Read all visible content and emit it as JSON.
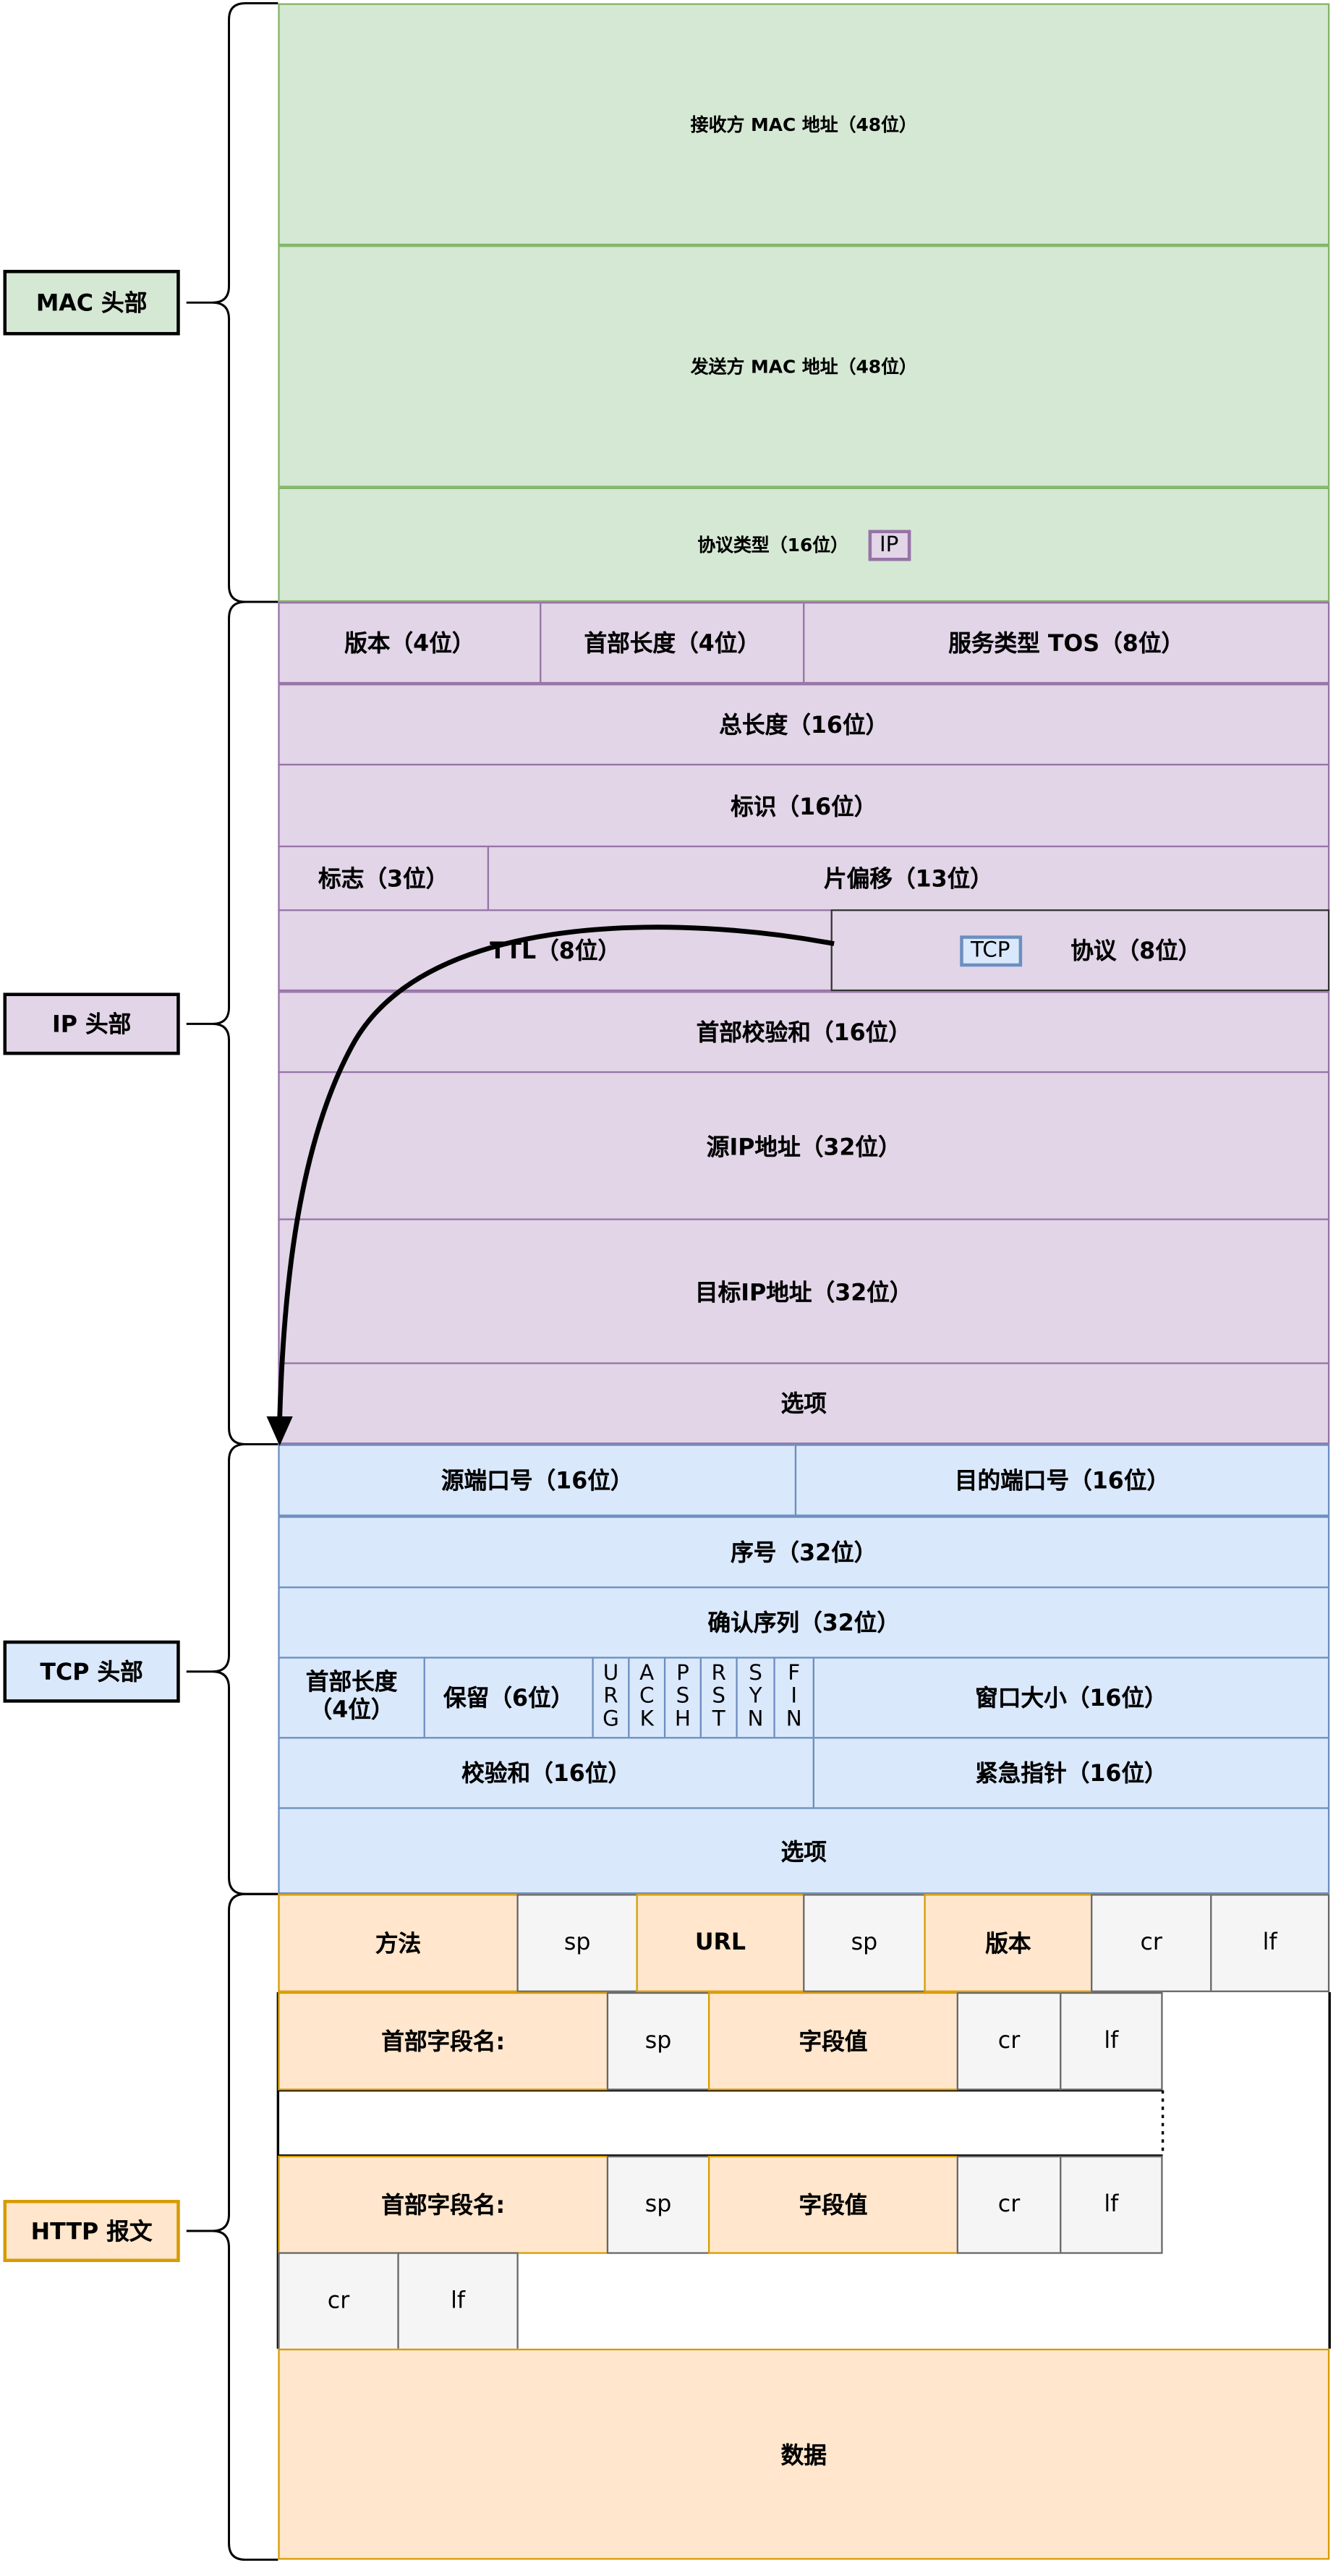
{
  "labels": {
    "mac": "MAC 头部",
    "ip": "IP 头部",
    "tcp": "TCP 头部",
    "http": "HTTP 报文"
  },
  "mac": {
    "dst": "接收方 MAC 地址（48位）",
    "src": "发送方 MAC 地址（48位）",
    "type": "协议类型（16位）",
    "type_tag": "IP"
  },
  "ip": {
    "version": "版本（4位）",
    "ihl": "首部长度（4位）",
    "tos": "服务类型 TOS（8位）",
    "total_len": "总长度（16位）",
    "id": "标识（16位）",
    "flags": "标志（3位）",
    "frag": "片偏移（13位）",
    "ttl": "TTL（8位）",
    "proto_tag": "TCP",
    "proto": "协议（8位）",
    "checksum": "首部校验和（16位）",
    "src": "源IP地址（32位）",
    "dst": "目标IP地址（32位）",
    "options": "选项"
  },
  "tcp": {
    "src_port": "源端口号（16位）",
    "dst_port": "目的端口号（16位）",
    "seq": "序号（32位）",
    "ack": "确认序列（32位）",
    "hlen": "首部长度（4位）",
    "reserved": "保留（6位）",
    "flags": [
      "URG",
      "ACK",
      "PSH",
      "RST",
      "SYN",
      "FIN"
    ],
    "window": "窗口大小（16位）",
    "checksum": "校验和（16位）",
    "urgent": "紧急指针（16位）",
    "options": "选项"
  },
  "http": {
    "method": "方法",
    "sp": "sp",
    "url": "URL",
    "version": "版本",
    "cr": "cr",
    "lf": "lf",
    "header_name": "首部字段名:",
    "header_value": "字段值",
    "body": "数据"
  },
  "colors": {
    "mac": "#d5e8d4",
    "ip": "#e1d5e7",
    "tcp": "#dae8fc",
    "http": "#ffe6cc",
    "token": "#f5f5f5"
  }
}
